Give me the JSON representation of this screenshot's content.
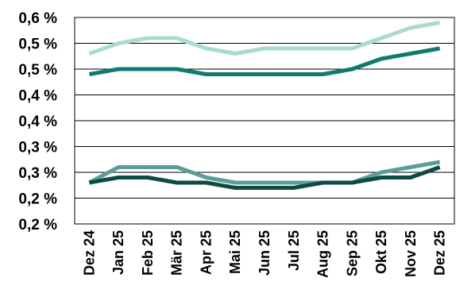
{
  "chart_data": {
    "type": "line",
    "title": "",
    "xlabel": "",
    "ylabel": "",
    "categories": [
      "Dez 24",
      "Jan 25",
      "Feb 25",
      "Mär 25",
      "Apr 25",
      "Mai 25",
      "Jun 25",
      "Jul 25",
      "Aug 25",
      "Sep 25",
      "Okt 25",
      "Nov 25",
      "Dez 25"
    ],
    "y_tick_labels": [
      "0,6 %",
      "0,5 %",
      "0,5 %",
      "0,4 %",
      "0,4 %",
      "0,3 %",
      "0,3 %",
      "0,2 %",
      "0,2 %"
    ],
    "ylim": [
      0.2,
      0.6
    ],
    "grid": true,
    "legend": "none",
    "series": [
      {
        "color": "#a8dcd0",
        "values": [
          0.53,
          0.55,
          0.56,
          0.56,
          0.54,
          0.53,
          0.54,
          0.54,
          0.54,
          0.54,
          0.56,
          0.58,
          0.59
        ]
      },
      {
        "color": "#0e7a72",
        "values": [
          0.49,
          0.5,
          0.5,
          0.5,
          0.49,
          0.49,
          0.49,
          0.49,
          0.49,
          0.5,
          0.52,
          0.53,
          0.54
        ]
      },
      {
        "color": "#5a9e98",
        "values": [
          0.28,
          0.31,
          0.31,
          0.31,
          0.29,
          0.28,
          0.28,
          0.28,
          0.28,
          0.28,
          0.3,
          0.31,
          0.32
        ]
      },
      {
        "color": "#0c4b42",
        "values": [
          0.28,
          0.29,
          0.29,
          0.28,
          0.28,
          0.27,
          0.27,
          0.27,
          0.28,
          0.28,
          0.29,
          0.29,
          0.31
        ]
      }
    ]
  }
}
